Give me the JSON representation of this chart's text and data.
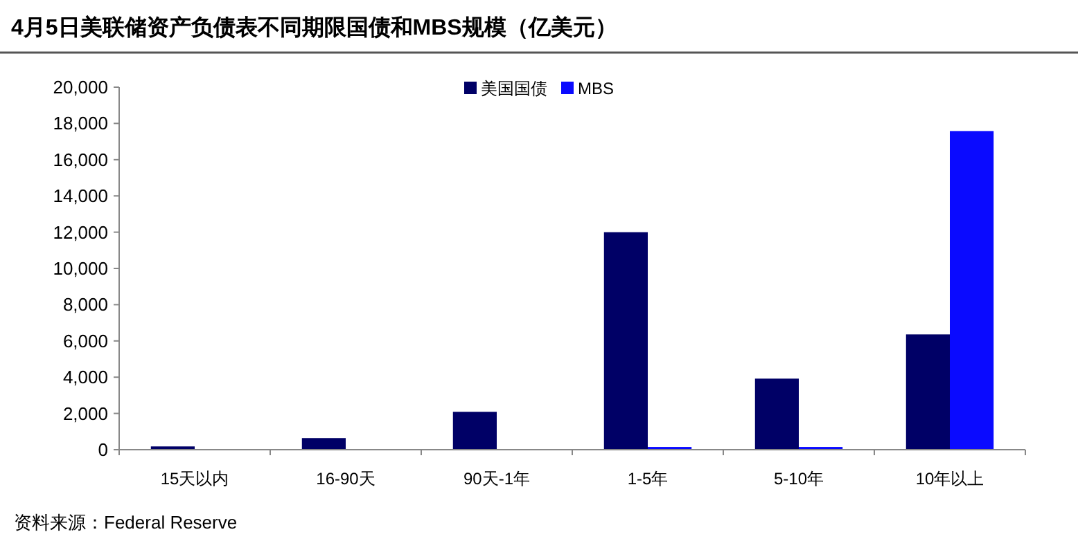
{
  "chart_data": {
    "type": "bar",
    "title": "4月5日美联储资产负债表不同期限国债和MBS规模（亿美元）",
    "categories": [
      "15天以内",
      "16-90天",
      "90天-1年",
      "1-5年",
      "5-10年",
      "10年以上"
    ],
    "series": [
      {
        "name": "美国国债",
        "color": "#000066",
        "values": [
          180,
          640,
          2090,
          12000,
          3920,
          6360
        ]
      },
      {
        "name": "MBS",
        "color": "#0a0aff",
        "values": [
          null,
          null,
          null,
          150,
          150,
          17580
        ]
      }
    ],
    "ylim": [
      0,
      20000
    ],
    "yticks": [
      {
        "value": 0,
        "label": "0"
      },
      {
        "value": 2000,
        "label": "2,000"
      },
      {
        "value": 4000,
        "label": "4,000"
      },
      {
        "value": 6000,
        "label": "6,000"
      },
      {
        "value": 8000,
        "label": "8,000"
      },
      {
        "value": 10000,
        "label": "10,000"
      },
      {
        "value": 12000,
        "label": "12,000"
      },
      {
        "value": 14000,
        "label": "14,000"
      },
      {
        "value": 16000,
        "label": "16,000"
      },
      {
        "value": 18000,
        "label": "18,000"
      },
      {
        "value": 20000,
        "label": "20,000"
      }
    ],
    "legend": "top",
    "grid": false,
    "annotations": [
      "资料来源：Federal Reserve"
    ]
  }
}
